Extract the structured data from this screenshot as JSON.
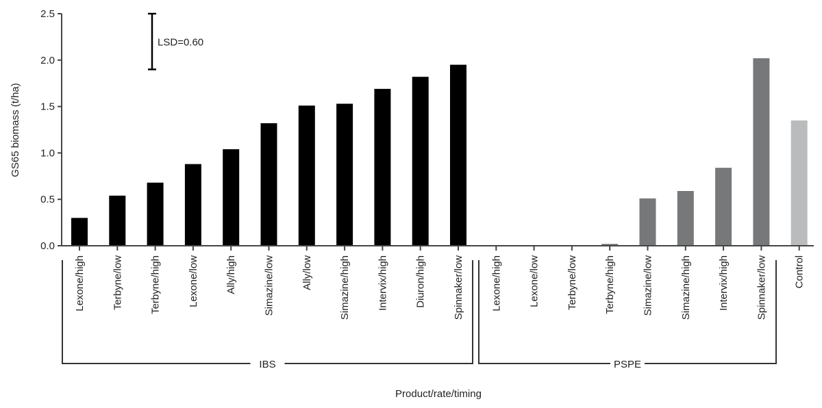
{
  "chart_data": {
    "type": "bar",
    "title": "",
    "xlabel": "Product/rate/timing",
    "ylabel": "GS65 biomass (t/ha)",
    "ylim": [
      0,
      2.5
    ],
    "yticks": [
      "0.0",
      "0.5",
      "1.0",
      "1.5",
      "2.0",
      "2.5"
    ],
    "grid": false,
    "annotation": {
      "label": "LSD=0.60",
      "lsd": 0.6,
      "bar_top": 2.5
    },
    "groups": [
      {
        "name": "IBS",
        "color": "#000000",
        "categories": [
          "Lexone/high",
          "Terbyne/low",
          "Terbyne/high",
          "Lexone/low",
          "Ally/high",
          "Simazine/low",
          "Ally/low",
          "Simazine/high",
          "Intervix/high",
          "Diuron/high",
          "Spinnaker/low"
        ],
        "values": [
          0.3,
          0.54,
          0.68,
          0.88,
          1.04,
          1.32,
          1.51,
          1.53,
          1.69,
          1.82,
          1.95
        ]
      },
      {
        "name": "PSPE",
        "color": "#76787a",
        "categories": [
          "Lexone/high",
          "Lexone/low",
          "Terbyne/low",
          "Terbyne/high",
          "Simazine/low",
          "Simazine/high",
          "Intervix/high",
          "Spinnaker/low"
        ],
        "values": [
          0,
          0,
          0,
          0.02,
          0.51,
          0.59,
          0.84,
          2.02
        ]
      },
      {
        "name": "",
        "color": "#b9bbbc",
        "categories": [
          "Control"
        ],
        "values": [
          1.35
        ]
      }
    ]
  }
}
